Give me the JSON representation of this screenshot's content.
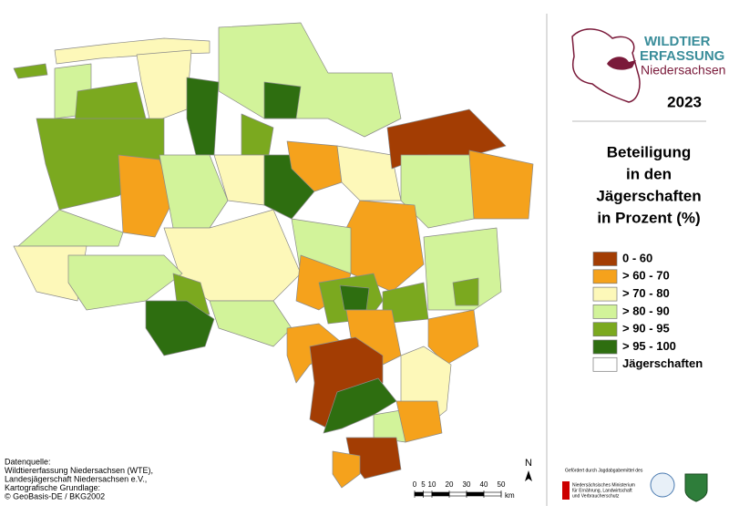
{
  "header": {
    "logo": [
      "WILDTIER",
      "ERFASSUNG",
      "Niedersachsen"
    ],
    "year": "2023"
  },
  "legend": {
    "title": [
      "Beteiligung",
      "in den",
      "Jägerschaften",
      "in Prozent (%)"
    ],
    "items": [
      {
        "label": "0 - 60",
        "color": "#a33d03"
      },
      {
        "label": "> 60 - 70",
        "color": "#f5a21c"
      },
      {
        "label": "> 70 - 80",
        "color": "#fdf8b9"
      },
      {
        "label": "> 80 - 90",
        "color": "#d2f39a"
      },
      {
        "label": "> 90 - 95",
        "color": "#7ba91f"
      },
      {
        "label": "> 95 - 100",
        "color": "#2e6e10"
      },
      {
        "label": "Jägerschaften",
        "color": "#ffffff"
      }
    ]
  },
  "source": [
    "Datenquelle:",
    "Wildtiererfassung Niedersachsen (WTE),",
    "Landesjägerschaft Niedersachsen e.V.,",
    "Kartografische Grundlage:",
    "© GeoBasis-DE / BKG2002"
  ],
  "scale": {
    "ticks": [
      0,
      5,
      10,
      20,
      30,
      40,
      50
    ],
    "unit": "km"
  },
  "north": "N",
  "funding": {
    "text": "Gefördert durch Jagdabgabemittel des",
    "ministry": [
      "Niedersächsisches Ministerium",
      "für Ernährung, Landwirtschaft",
      "und Verbraucherschutz"
    ]
  }
}
